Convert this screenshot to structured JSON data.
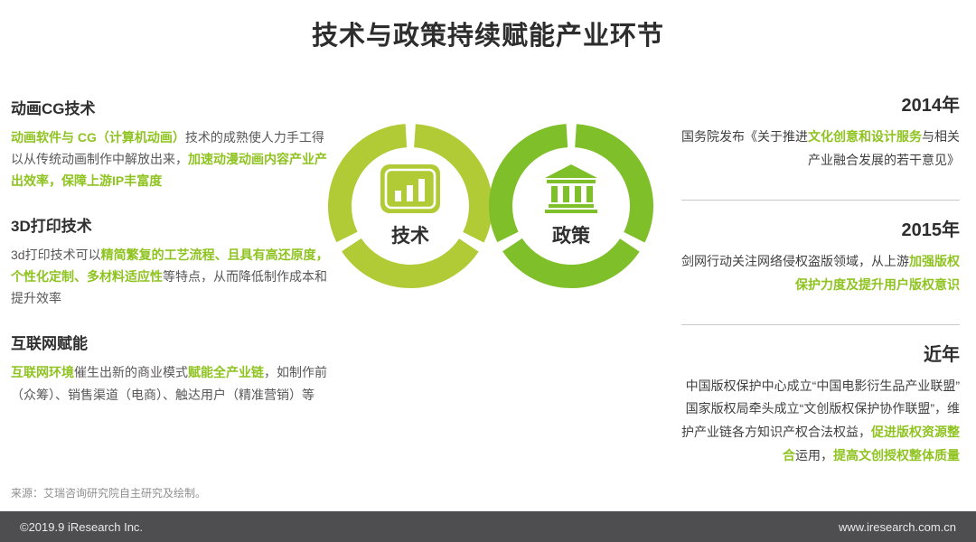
{
  "title": "技术与政策持续赋能产业环节",
  "colors": {
    "accent_green": "#8fc320",
    "ring_tech": "#b0cb35",
    "ring_policy": "#7fbf29",
    "footer_bg": "#4e4e50"
  },
  "left_sections": [
    {
      "heading": "动画CG技术",
      "parts": [
        {
          "t": "动画软件与 CG（计算机动画）",
          "g": true
        },
        {
          "t": "技术的成熟使人力手工得以从传统动画制作中解放出来，",
          "g": false
        },
        {
          "t": "加速动漫动画内容产业产出效率，保障上游IP丰富度",
          "g": true
        }
      ]
    },
    {
      "heading": "3D打印技术",
      "parts": [
        {
          "t": "3d打印技术可以",
          "g": false
        },
        {
          "t": "精简繁复的工艺流程、且具有高还原度，个性化定制、多材料适应性",
          "g": true
        },
        {
          "t": "等特点，从而降低制作成本和提升效率",
          "g": false
        }
      ]
    },
    {
      "heading": "互联网赋能",
      "parts": [
        {
          "t": "互联网环境",
          "g": true
        },
        {
          "t": "催生出新的商业模式",
          "g": false
        },
        {
          "t": "赋能全产业链",
          "g": true
        },
        {
          "t": "，如制作前（众筹）、销售渠道（电商）、触达用户（精准营销）等",
          "g": false
        }
      ]
    }
  ],
  "circles": [
    {
      "label": "技术",
      "icon": "bar-chart-icon"
    },
    {
      "label": "政策",
      "icon": "bank-icon"
    }
  ],
  "right_sections": [
    {
      "year": "2014年",
      "divider": false,
      "parts": [
        {
          "t": "国务院发布《关于推进",
          "g": false
        },
        {
          "t": "文化创意和设计服务",
          "g": true
        },
        {
          "t": "与相关产业融合发展的若干意见》",
          "g": false
        }
      ]
    },
    {
      "year": "2015年",
      "divider": true,
      "parts": [
        {
          "t": "剑网行动关注网络侵权盗版领域，从上游",
          "g": false
        },
        {
          "t": "加强版权保护力度及提升用户版权意识",
          "g": true
        }
      ]
    },
    {
      "year": "近年",
      "divider": true,
      "parts": [
        {
          "t": "中国版权保护中心成立“中国电影衍生品产业联盟”",
          "g": false
        },
        {
          "br": true
        },
        {
          "t": "国家版权局牵头成立“文创版权保护协作联盟”，维护产业链各方知识产权合法权益，",
          "g": false
        },
        {
          "t": "促进版权资源整合",
          "g": true
        },
        {
          "t": "运用，",
          "g": false
        },
        {
          "t": "提高文创授权整体质量",
          "g": true
        }
      ]
    }
  ],
  "source": "来源：艾瑞咨询研究院自主研究及绘制。",
  "footer": {
    "left": "©2019.9 iResearch Inc.",
    "right": "www.iresearch.com.cn"
  }
}
